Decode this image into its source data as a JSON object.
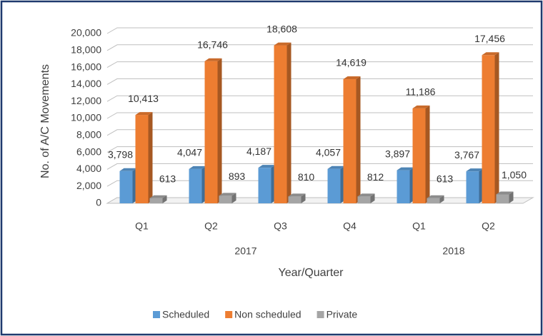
{
  "chart_data": {
    "type": "bar3d",
    "y_label": "No. of A/C Movements",
    "x_label": "Year/Quarter",
    "categories": [
      "Q1",
      "Q2",
      "Q3",
      "Q4",
      "Q1",
      "Q2"
    ],
    "group_labels": [
      "2017",
      "2018"
    ],
    "series": [
      {
        "name": "Scheduled",
        "color": "#5b9bd5",
        "values": [
          3798,
          4047,
          4187,
          4057,
          3897,
          3767
        ],
        "value_labels": [
          "3,798",
          "4,047",
          "4,187",
          "4,057",
          "3,897",
          "3,767"
        ]
      },
      {
        "name": "Non scheduled",
        "color": "#ed7d31",
        "values": [
          10413,
          16746,
          18608,
          14619,
          11186,
          17456
        ],
        "value_labels": [
          "10,413",
          "16,746",
          "18,608",
          "14,619",
          "11,186",
          "17,456"
        ]
      },
      {
        "name": "Private",
        "color": "#a5a5a5",
        "values": [
          613,
          893,
          810,
          812,
          613,
          1050
        ],
        "value_labels": [
          "613",
          "893",
          "810",
          "812",
          "613",
          "1,050"
        ]
      }
    ],
    "ylim": [
      0,
      20000
    ],
    "yticks": [
      0,
      {
        "value": 2000,
        "label": "2,000"
      },
      {
        "value": 4000,
        "label": "4,000"
      },
      {
        "value": 6000,
        "label": "6,000"
      },
      {
        "value": 8000,
        "label": "8,000"
      },
      {
        "value": 10000,
        "label": "10,000"
      },
      {
        "value": 12000,
        "label": "12,000"
      },
      {
        "value": 14000,
        "label": "14,000"
      },
      {
        "value": 16000,
        "label": "16,000"
      },
      {
        "value": 18000,
        "label": "18,000"
      },
      {
        "value": 20000,
        "label": "20,000"
      }
    ],
    "grid": true
  }
}
